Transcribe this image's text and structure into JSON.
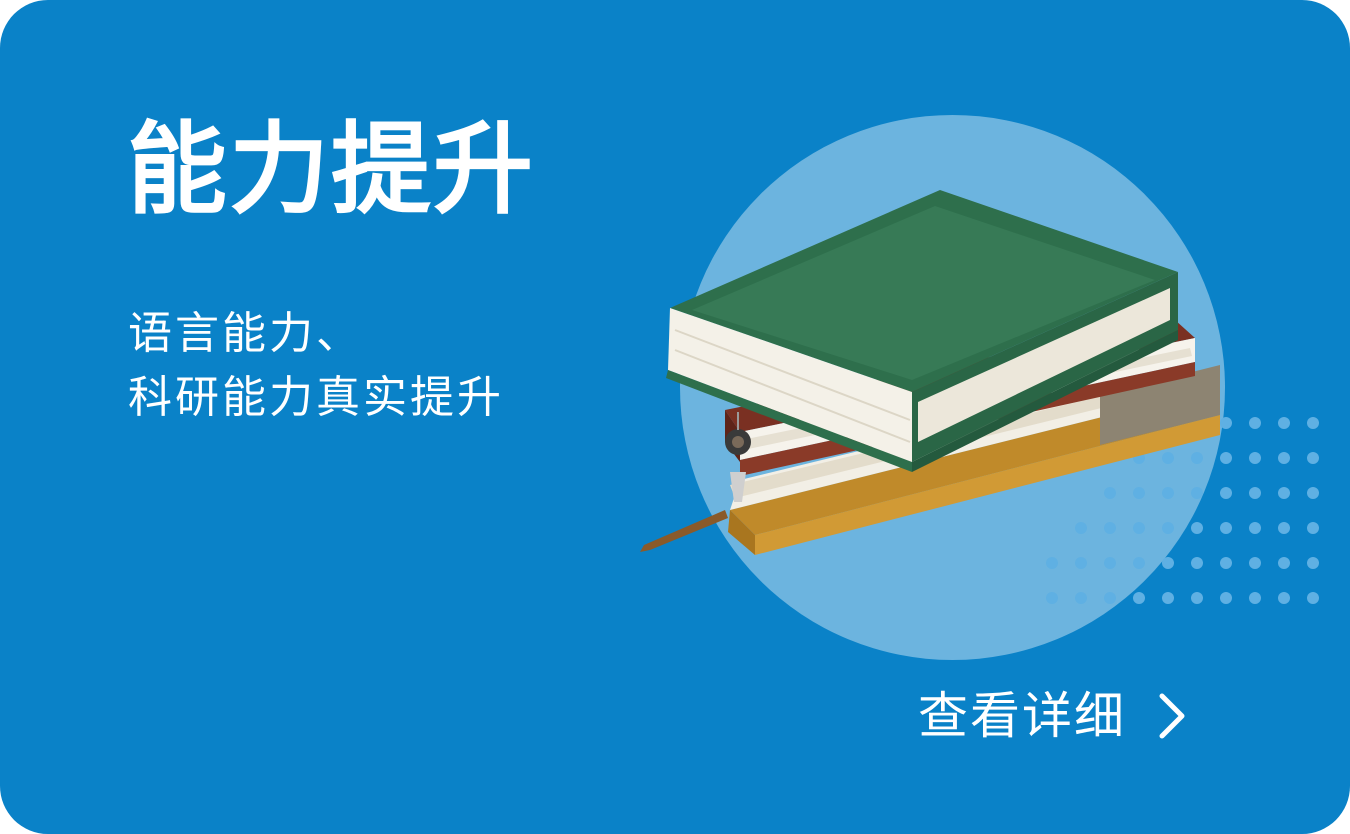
{
  "colors": {
    "card_background": "#0a82c8",
    "circle": "#6cb4df",
    "dots": "#5fb0e3",
    "text": "#ffffff"
  },
  "card": {
    "title": "能力提升",
    "subtitle_lines": [
      "语言能力、",
      "科研能力真实提升"
    ]
  },
  "illustration": {
    "icon": "stacked-books-icon"
  },
  "cta": {
    "label": "查看详细",
    "icon": "chevron-right-icon"
  }
}
